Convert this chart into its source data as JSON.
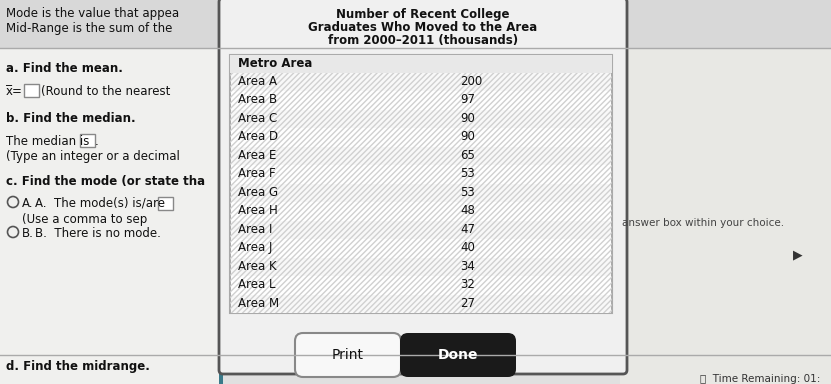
{
  "title_line1": "Number of Recent College",
  "title_line2": "Graduates Who Moved to the Area",
  "title_line3": "from 2000–2011 (thousands)",
  "col1_header": "Metro Area",
  "areas": [
    "Area A",
    "Area B",
    "Area C",
    "Area D",
    "Area E",
    "Area F",
    "Area G",
    "Area H",
    "Area I",
    "Area J",
    "Area K",
    "Area L",
    "Area M"
  ],
  "values": [
    200,
    97,
    90,
    90,
    65,
    53,
    53,
    48,
    47,
    40,
    34,
    32,
    27
  ],
  "left_top1": "Mode is the value that appea",
  "left_top2": "Mid-Range is the sum of the",
  "question_a": "a. Find the mean.",
  "xbar_label": "x̅=",
  "xbar_suffix": "(Round to the nearest",
  "question_b": "b. Find the median.",
  "median_label": "The median is",
  "median_suffix": ".",
  "type_label": "(Type an integer or a decimal",
  "question_c": "c. Find the mode (or state tha",
  "radio_a_text": "A.  The mode(s) is/are",
  "radio_a_sub": "(Use a comma to sep",
  "radio_b_text": "B.  There is no mode.",
  "right_answer_text": "answer box within your choice.",
  "question_d": "d. Find the midrange.",
  "print_btn": "Print",
  "done_btn": "Done",
  "time_text": "Time Remaining: 01:",
  "bg_top": "#c8c8c8",
  "bg_main": "#e0e0e0",
  "bg_right": "#e8e8e4",
  "dialog_bg": "#f0f0f0",
  "dialog_border": "#555555",
  "table_bg": "#f8f8f8",
  "table_border": "#aaaaaa",
  "done_bg": "#1a1a1a",
  "done_fg": "#ffffff",
  "print_bg": "#f8f8f8",
  "left_bg": "#f0f0ee",
  "sep_line_color": "#aaaaaa",
  "text_color": "#111111",
  "subtext_color": "#444444"
}
